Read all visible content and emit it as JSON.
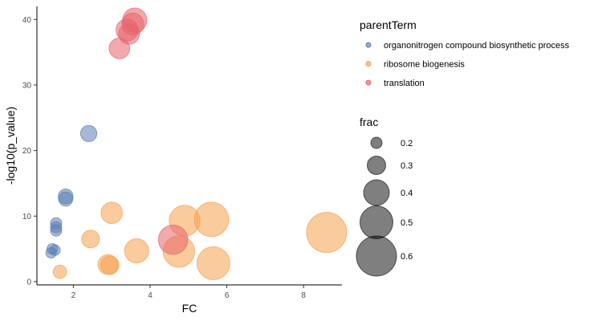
{
  "chart_data": {
    "type": "scatter",
    "xlabel": "FC",
    "ylabel": "-log10(p_value)",
    "xlim": [
      1.05,
      9.0
    ],
    "ylim": [
      -0.5,
      42.0
    ],
    "x_ticks": [
      2,
      4,
      6,
      8
    ],
    "y_ticks": [
      0,
      10,
      20,
      30,
      40
    ],
    "grid": false,
    "legend_placement": "right",
    "color_legend": {
      "title": "parentTerm",
      "entries": [
        "organonitrogen compound biosynthetic process",
        "ribosome biogenesis",
        "translation"
      ]
    },
    "size_legend": {
      "title": "frac",
      "values": [
        0.2,
        0.3,
        0.4,
        0.5,
        0.6
      ],
      "labels": [
        "0.2",
        "0.3",
        "0.4",
        "0.5",
        "0.6"
      ]
    },
    "series": [
      {
        "name": "organonitrogen compound biosynthetic process",
        "color": "#5B7FB1",
        "points": [
          {
            "x": 2.4,
            "y": 22.6,
            "frac": 0.27
          },
          {
            "x": 1.8,
            "y": 13.0,
            "frac": 0.25
          },
          {
            "x": 1.8,
            "y": 12.6,
            "frac": 0.24
          },
          {
            "x": 1.55,
            "y": 8.9,
            "frac": 0.2
          },
          {
            "x": 1.55,
            "y": 8.3,
            "frac": 0.2
          },
          {
            "x": 1.55,
            "y": 7.8,
            "frac": 0.2
          },
          {
            "x": 1.45,
            "y": 5.0,
            "frac": 0.19
          },
          {
            "x": 1.52,
            "y": 4.8,
            "frac": 0.19
          },
          {
            "x": 1.42,
            "y": 4.4,
            "frac": 0.19
          }
        ]
      },
      {
        "name": "ribosome biogenesis",
        "color": "#F6A04D",
        "points": [
          {
            "x": 8.6,
            "y": 7.5,
            "frac": 0.6
          },
          {
            "x": 5.6,
            "y": 9.5,
            "frac": 0.52
          },
          {
            "x": 4.9,
            "y": 9.3,
            "frac": 0.47
          },
          {
            "x": 5.65,
            "y": 2.8,
            "frac": 0.5
          },
          {
            "x": 4.75,
            "y": 4.6,
            "frac": 0.48
          },
          {
            "x": 3.65,
            "y": 4.7,
            "frac": 0.38
          },
          {
            "x": 3.0,
            "y": 10.5,
            "frac": 0.34
          },
          {
            "x": 2.45,
            "y": 6.5,
            "frac": 0.29
          },
          {
            "x": 2.9,
            "y": 2.6,
            "frac": 0.32
          },
          {
            "x": 2.95,
            "y": 2.5,
            "frac": 0.3
          },
          {
            "x": 1.65,
            "y": 1.5,
            "frac": 0.23
          }
        ]
      },
      {
        "name": "translation",
        "color": "#E8636B",
        "points": [
          {
            "x": 3.6,
            "y": 39.9,
            "frac": 0.38
          },
          {
            "x": 3.55,
            "y": 39.3,
            "frac": 0.35
          },
          {
            "x": 3.4,
            "y": 38.4,
            "frac": 0.35
          },
          {
            "x": 3.45,
            "y": 37.8,
            "frac": 0.33
          },
          {
            "x": 3.2,
            "y": 35.6,
            "frac": 0.33
          },
          {
            "x": 4.6,
            "y": 6.4,
            "frac": 0.45
          }
        ]
      }
    ]
  }
}
